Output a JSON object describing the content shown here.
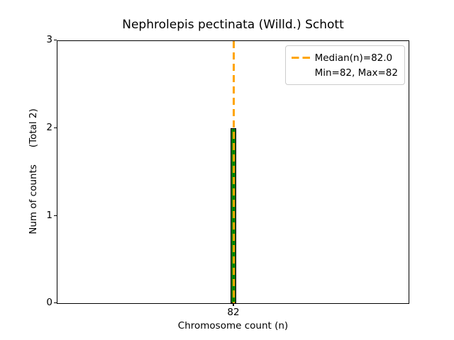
{
  "title": "Nephrolepis pectinata (Willd.) Schott",
  "x_axis": {
    "label": "Chromosome count (n)"
  },
  "y_axis": {
    "label_main": "Num of counts",
    "label_suffix": "(Total 2)"
  },
  "legend": {
    "items": [
      {
        "label": "Median(n)=82.0",
        "marker": "orange-dashed-line"
      },
      {
        "label": "Min=82, Max=82",
        "marker": "none"
      }
    ]
  },
  "colors": {
    "bar_fill": "#008000",
    "bar_edge": "#000000",
    "median_line": "#FFA500",
    "legend_border": "#cccccc",
    "text": "#000000",
    "background": "#ffffff"
  },
  "chart_data": {
    "type": "bar",
    "title": "Nephrolepis pectinata (Willd.) Schott",
    "xlabel": "Chromosome count (n)",
    "ylabel": "Num of counts (Total 2)",
    "categories": [
      82
    ],
    "values": [
      2
    ],
    "total_counts": 2,
    "median_n": 82.0,
    "min_n": 82,
    "max_n": 82,
    "ylim": [
      0,
      3
    ],
    "yticks": [
      0,
      1,
      2,
      3
    ],
    "xticks": [
      82
    ],
    "grid": false,
    "legend_position": "upper right",
    "median_line_style": "dashed",
    "annotations": [
      "Median(n)=82.0",
      "Min=82, Max=82"
    ]
  }
}
